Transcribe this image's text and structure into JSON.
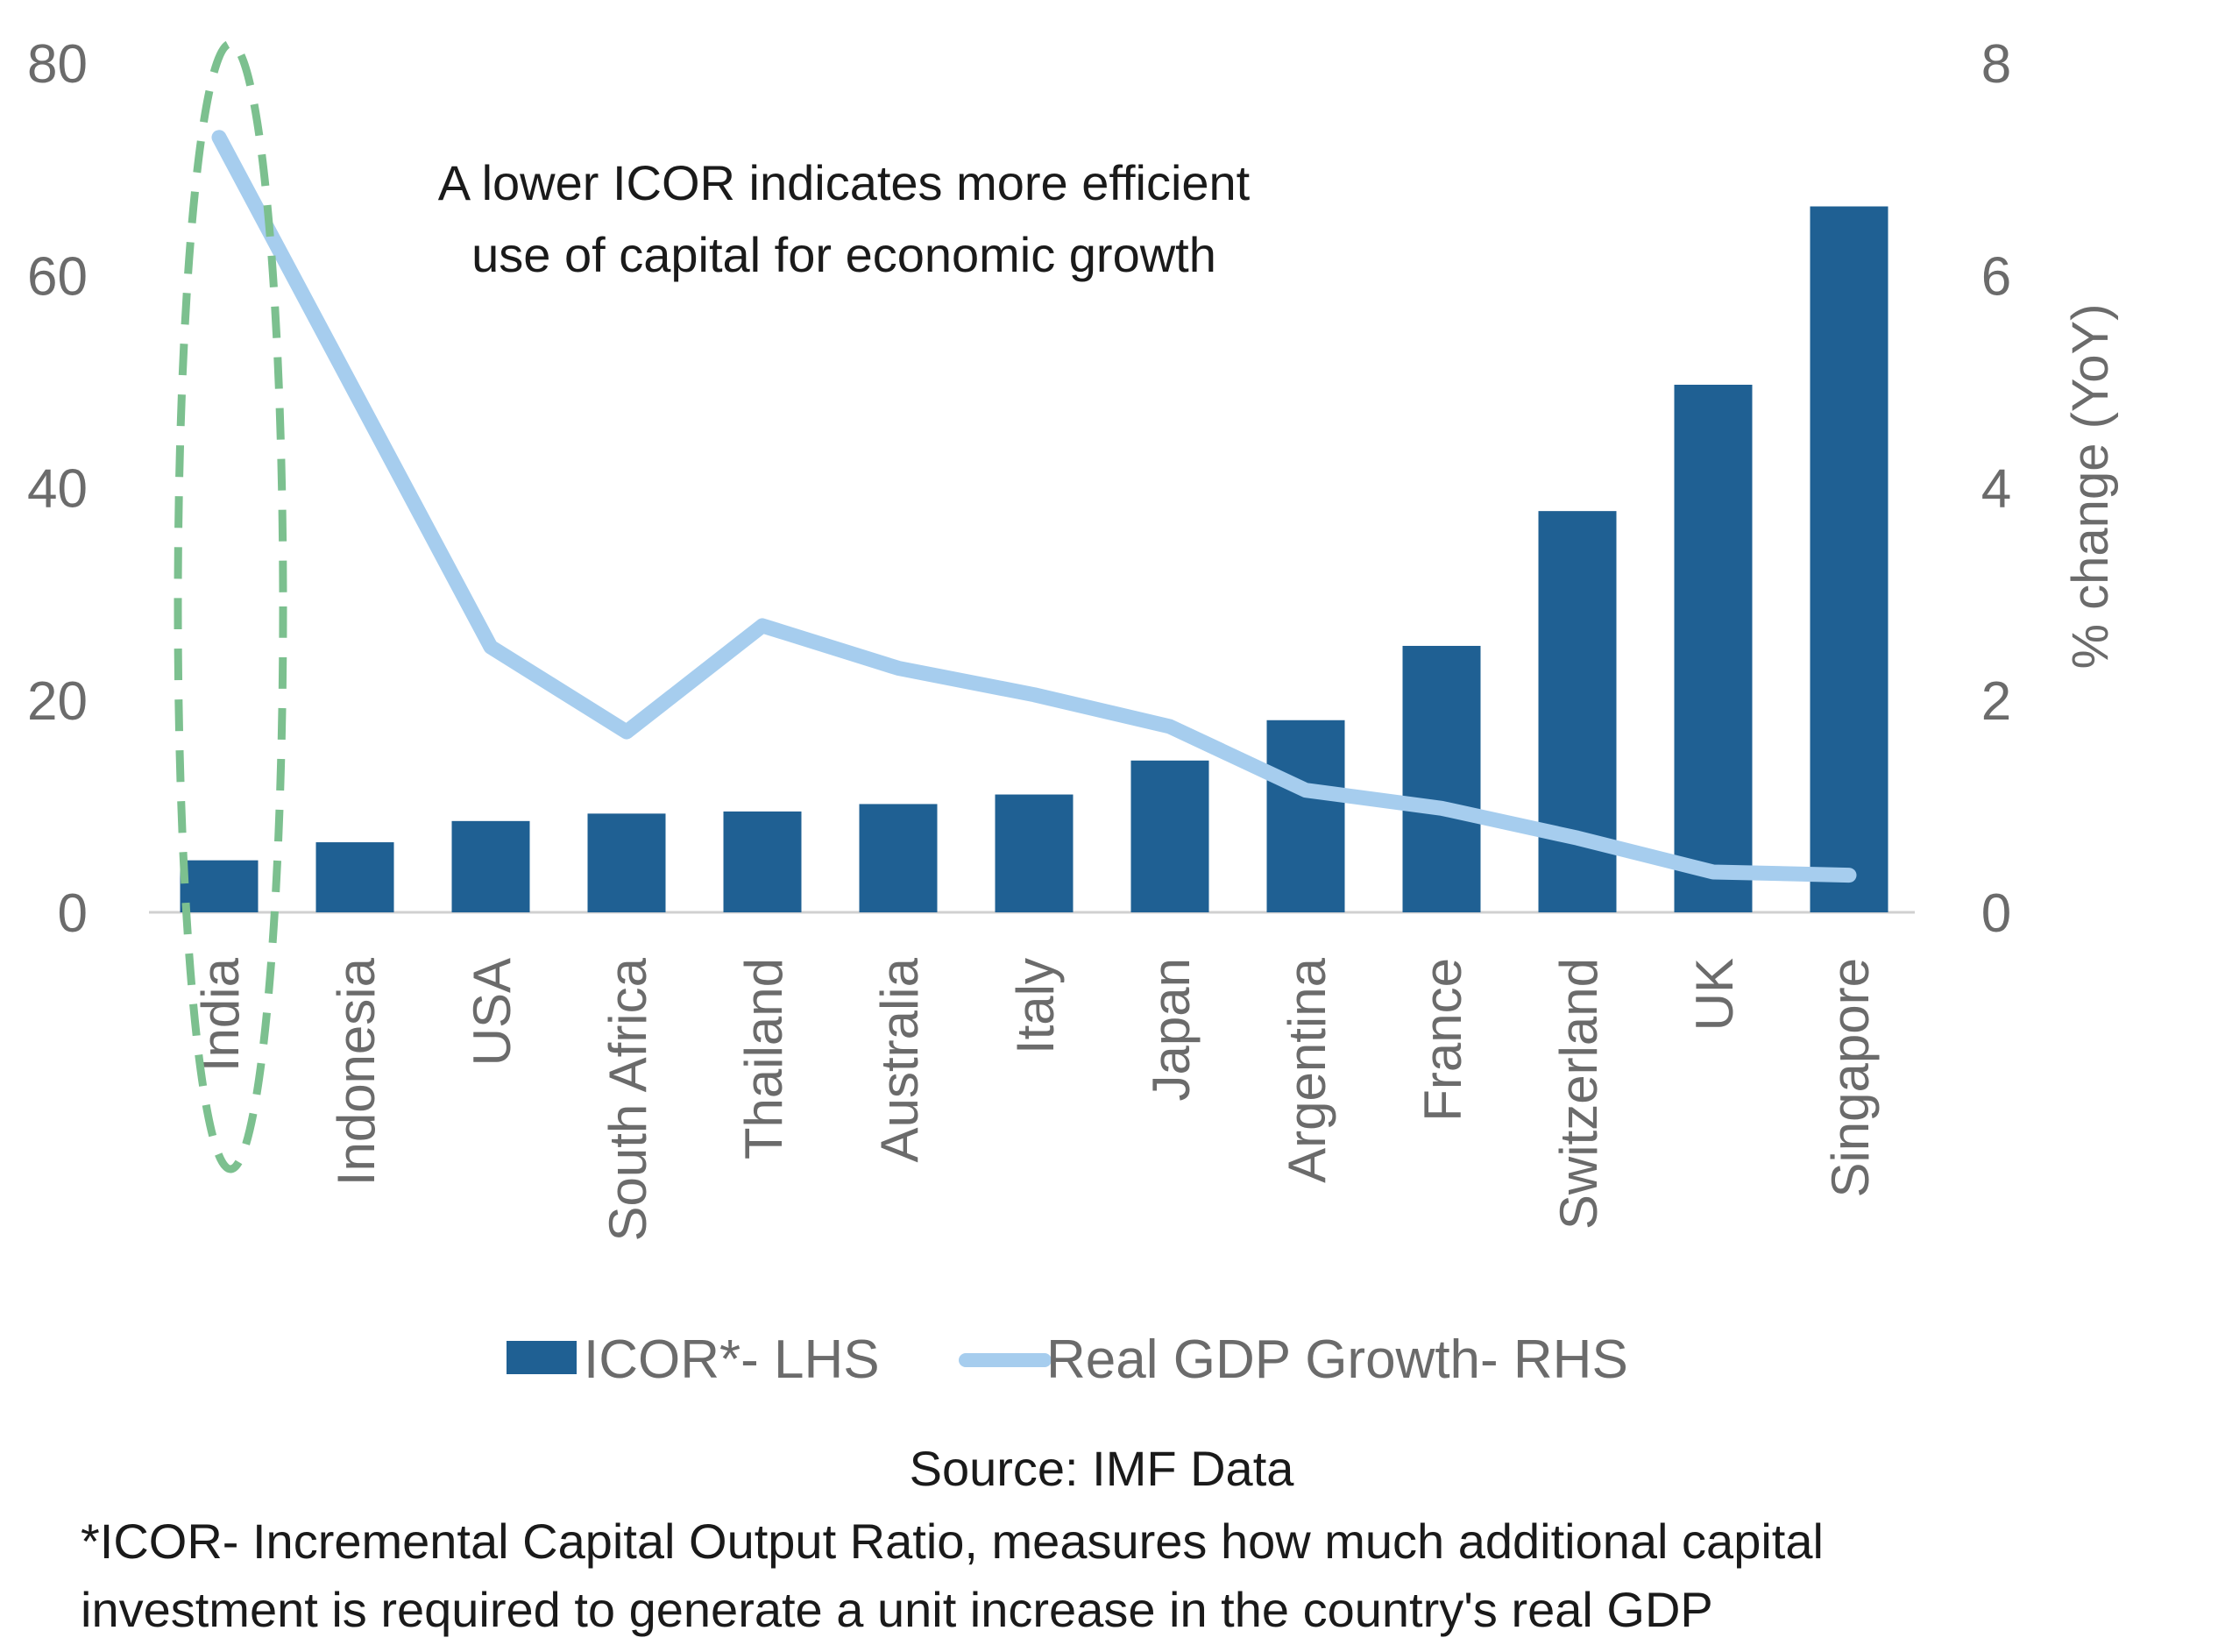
{
  "chart_data": {
    "type": "bar",
    "categories": [
      "India",
      "Indonesia",
      "USA",
      "South Africa",
      "Thailand",
      "Australia",
      "Italy",
      "Japan",
      "Argentina",
      "France",
      "Switzerland",
      "UK",
      "Singapore"
    ],
    "series": [
      {
        "name": "ICOR*- LHS",
        "type": "bar",
        "axis": "left",
        "color": "#1f6093",
        "values": [
          4.9,
          6.6,
          8.6,
          9.3,
          9.5,
          10.2,
          11.1,
          14.3,
          18.1,
          25.1,
          37.8,
          49.7,
          66.5
        ]
      },
      {
        "name": "Real GDP Growth- RHS",
        "type": "line",
        "axis": "right",
        "color": "#a6cdee",
        "values": [
          7.3,
          4.9,
          2.5,
          1.7,
          2.7,
          2.3,
          2.05,
          1.75,
          1.15,
          0.98,
          0.7,
          0.38,
          0.35
        ]
      }
    ],
    "y_left": {
      "min": 0,
      "max": 80,
      "ticks": [
        "0",
        "20",
        "40",
        "60",
        "80"
      ]
    },
    "y_right": {
      "min": 0,
      "max": 8,
      "ticks": [
        "0",
        "2",
        "4",
        "6",
        "8"
      ],
      "label": "% change (YoY)"
    },
    "grid": false,
    "legend": "bottom",
    "annotation": {
      "line1": "A lower ICOR indicates more efficient",
      "line2": "use of capital for economic growth",
      "highlight_category": "India",
      "highlight_color": "#7cc08f"
    },
    "source": "Source:  IMF Data",
    "footnote": {
      "line1": "*ICOR- Incremental Capital Output Ratio, measures how much additional capital",
      "line2": "investment is required to generate a unit increase in the country's real GDP"
    },
    "colors": {
      "axis": "#d0d0d0",
      "text": "#6b6b6b"
    }
  }
}
